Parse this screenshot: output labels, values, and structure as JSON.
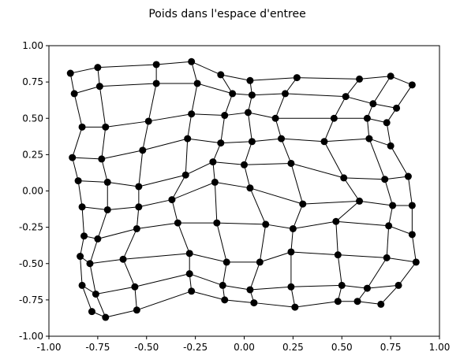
{
  "chart_data": {
    "type": "scatter",
    "title": "Poids dans l'espace d'entree",
    "xlabel": "",
    "ylabel": "",
    "xlim": [
      -1.0,
      1.0
    ],
    "ylim": [
      -1.0,
      1.0
    ],
    "xticks": [
      "-1.00",
      "-0.75",
      "-0.50",
      "-0.25",
      "0.00",
      "0.25",
      "0.50",
      "0.75",
      "1.00"
    ],
    "yticks": [
      "1.00",
      "0.75",
      "0.50",
      "0.25",
      "0.00",
      "-0.25",
      "-0.50",
      "-0.75",
      "-1.00"
    ],
    "grid": false,
    "marker_color": "#000000",
    "line_color": "#000000",
    "grid_rows": 10,
    "grid_cols": 10,
    "nodes": [
      [
        [
          -0.89,
          0.81
        ],
        [
          -0.75,
          0.85
        ],
        [
          -0.45,
          0.87
        ],
        [
          -0.27,
          0.89
        ],
        [
          -0.12,
          0.8
        ],
        [
          0.03,
          0.76
        ],
        [
          0.27,
          0.78
        ],
        [
          0.59,
          0.77
        ],
        [
          0.75,
          0.79
        ],
        [
          0.86,
          0.73
        ]
      ],
      [
        [
          -0.87,
          0.67
        ],
        [
          -0.74,
          0.72
        ],
        [
          -0.45,
          0.74
        ],
        [
          -0.24,
          0.74
        ],
        [
          -0.06,
          0.67
        ],
        [
          0.04,
          0.66
        ],
        [
          0.21,
          0.67
        ],
        [
          0.52,
          0.65
        ],
        [
          0.66,
          0.6
        ],
        [
          0.78,
          0.57
        ]
      ],
      [
        [
          -0.83,
          0.44
        ],
        [
          -0.71,
          0.44
        ],
        [
          -0.49,
          0.48
        ],
        [
          -0.27,
          0.53
        ],
        [
          -0.1,
          0.52
        ],
        [
          0.02,
          0.54
        ],
        [
          0.16,
          0.5
        ],
        [
          0.46,
          0.5
        ],
        [
          0.63,
          0.5
        ],
        [
          0.73,
          0.47
        ]
      ],
      [
        [
          -0.88,
          0.23
        ],
        [
          -0.73,
          0.22
        ],
        [
          -0.52,
          0.28
        ],
        [
          -0.29,
          0.36
        ],
        [
          -0.12,
          0.33
        ],
        [
          0.04,
          0.34
        ],
        [
          0.19,
          0.36
        ],
        [
          0.41,
          0.34
        ],
        [
          0.64,
          0.36
        ],
        [
          0.75,
          0.31
        ]
      ],
      [
        [
          -0.85,
          0.07
        ],
        [
          -0.7,
          0.06
        ],
        [
          -0.54,
          0.03
        ],
        [
          -0.3,
          0.11
        ],
        [
          -0.16,
          0.2
        ],
        [
          0.0,
          0.18
        ],
        [
          0.24,
          0.19
        ],
        [
          0.51,
          0.09
        ],
        [
          0.72,
          0.08
        ],
        [
          0.84,
          0.1
        ]
      ],
      [
        [
          -0.83,
          -0.11
        ],
        [
          -0.7,
          -0.13
        ],
        [
          -0.54,
          -0.11
        ],
        [
          -0.37,
          -0.06
        ],
        [
          -0.15,
          0.06
        ],
        [
          0.03,
          0.02
        ],
        [
          0.3,
          -0.09
        ],
        [
          0.59,
          -0.07
        ],
        [
          0.76,
          -0.1
        ],
        [
          0.86,
          -0.1
        ]
      ],
      [
        [
          -0.82,
          -0.31
        ],
        [
          -0.75,
          -0.33
        ],
        [
          -0.55,
          -0.26
        ],
        [
          -0.34,
          -0.22
        ],
        [
          -0.14,
          -0.22
        ],
        [
          0.11,
          -0.23
        ],
        [
          0.25,
          -0.26
        ],
        [
          0.47,
          -0.21
        ],
        [
          0.74,
          -0.24
        ],
        [
          0.86,
          -0.3
        ]
      ],
      [
        [
          -0.84,
          -0.45
        ],
        [
          -0.79,
          -0.5
        ],
        [
          -0.62,
          -0.47
        ],
        [
          -0.28,
          -0.43
        ],
        [
          -0.09,
          -0.49
        ],
        [
          0.08,
          -0.49
        ],
        [
          0.24,
          -0.42
        ],
        [
          0.48,
          -0.44
        ],
        [
          0.73,
          -0.46
        ],
        [
          0.88,
          -0.49
        ]
      ],
      [
        [
          -0.83,
          -0.65
        ],
        [
          -0.76,
          -0.71
        ],
        [
          -0.56,
          -0.66
        ],
        [
          -0.28,
          -0.57
        ],
        [
          -0.11,
          -0.65
        ],
        [
          0.03,
          -0.68
        ],
        [
          0.24,
          -0.66
        ],
        [
          0.5,
          -0.65
        ],
        [
          0.63,
          -0.67
        ],
        [
          0.79,
          -0.65
        ]
      ],
      [
        [
          -0.78,
          -0.83
        ],
        [
          -0.71,
          -0.87
        ],
        [
          -0.55,
          -0.82
        ],
        [
          -0.27,
          -0.69
        ],
        [
          -0.1,
          -0.75
        ],
        [
          0.05,
          -0.77
        ],
        [
          0.26,
          -0.8
        ],
        [
          0.48,
          -0.76
        ],
        [
          0.58,
          -0.76
        ],
        [
          0.7,
          -0.78
        ]
      ]
    ]
  }
}
